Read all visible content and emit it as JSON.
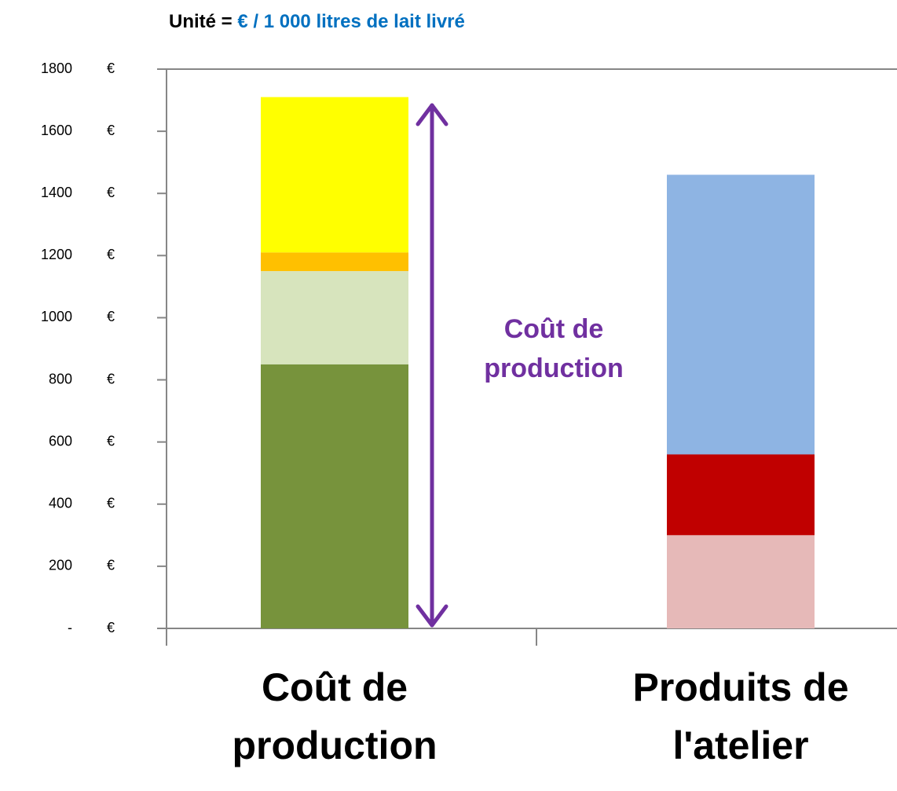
{
  "chart_data": {
    "type": "stacked_bar",
    "title_parts": [
      "Unité =",
      "€ / 1 000 litres de lait livré"
    ],
    "annotation": "Coût de production",
    "categories": [
      "Coût de production",
      "Produits de l'atelier"
    ],
    "series": [
      {
        "color": "#77933c",
        "values": [
          850,
          null
        ]
      },
      {
        "color": "#d7e4bd",
        "values": [
          300,
          null
        ]
      },
      {
        "color": "#ffc000",
        "values": [
          60,
          null
        ]
      },
      {
        "color": "#ffff00",
        "values": [
          500,
          null
        ]
      },
      {
        "color": "#e6b9b8",
        "values": [
          null,
          300
        ]
      },
      {
        "color": "#c00000",
        "values": [
          null,
          260
        ]
      },
      {
        "color": "#8eb4e3",
        "values": [
          null,
          900
        ]
      }
    ],
    "ylim": [
      0,
      1800
    ],
    "yticks": [
      {
        "value": 0,
        "label": "-"
      },
      200,
      400,
      600,
      800,
      1000,
      1200,
      1400,
      1600,
      1800
    ],
    "ytick_unit": "€"
  }
}
